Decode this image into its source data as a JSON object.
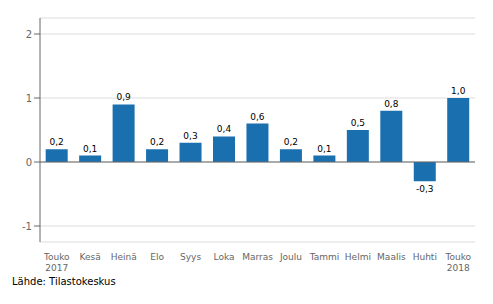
{
  "chart_data": {
    "type": "bar",
    "categories": [
      "Touko\n2017",
      "Kesä",
      "Heinä",
      "Elo",
      "Syys",
      "Loka",
      "Marras",
      "Joulu",
      "Tammi",
      "Helmi",
      "Maalis",
      "Huhti",
      "Touko\n2018"
    ],
    "values": [
      0.2,
      0.1,
      0.9,
      0.2,
      0.3,
      0.4,
      0.6,
      0.2,
      0.1,
      0.5,
      0.8,
      -0.3,
      1.0
    ],
    "value_labels": [
      "0,2",
      "0,1",
      "0,9",
      "0,2",
      "0,3",
      "0,4",
      "0,6",
      "0,2",
      "0,1",
      "0,5",
      "0,8",
      "-0,3",
      "1,0"
    ],
    "data_labels": true,
    "color": "#1a6faf",
    "ylim": [
      -1.25,
      2.25
    ],
    "yticks": [
      -1,
      0,
      1,
      2
    ],
    "grid": true,
    "annotations": [
      "Lähde: Tilastokeskus"
    ]
  }
}
